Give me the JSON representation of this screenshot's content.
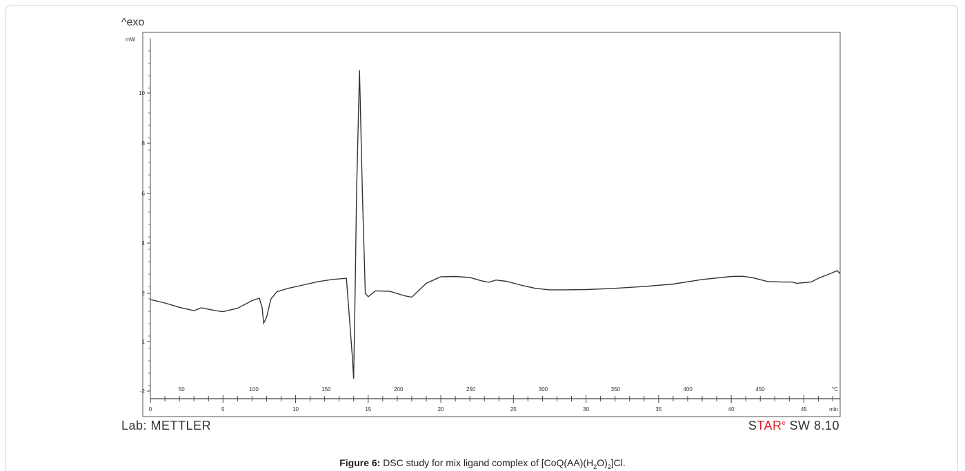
{
  "chart_data": {
    "type": "line",
    "ylabel_top": "^exo",
    "y_unit": "mW",
    "x_top_unit": "°C",
    "x_bottom_unit": "min",
    "y_ticks": [
      "-2",
      "1",
      "2",
      "4",
      "6",
      "8",
      "10"
    ],
    "x_top_ticks": [
      50,
      100,
      150,
      200,
      250,
      300,
      350,
      400,
      450
    ],
    "x_bottom_ticks": [
      0,
      5,
      10,
      15,
      20,
      25,
      30,
      35,
      40,
      45
    ],
    "xlim": [
      0,
      47.5
    ],
    "series": [
      {
        "x": [
          0,
          1,
          2,
          3,
          3.5,
          4,
          4.5,
          5,
          6,
          7,
          7.5,
          7.7,
          7.8,
          8.0,
          8.3,
          8.7,
          9.5,
          10.5,
          11.5,
          12.5,
          13.5,
          13.9,
          14.0,
          14.1,
          14.2,
          14.4,
          14.6,
          14.8,
          15.0,
          15.5,
          16.5,
          17.5,
          18.0,
          19.0,
          20.0,
          21.0,
          22.0,
          22.8,
          23.3,
          23.8,
          24.5,
          25.5,
          26.5,
          27.5,
          28.5,
          30.0,
          32.0,
          34.0,
          36.0,
          38.0,
          40.0,
          40.8,
          41.5,
          42.5,
          43.5,
          44.2,
          44.5,
          45.5,
          46.0,
          46.8,
          47.3,
          47.5
        ],
        "y": [
          1.87,
          1.8,
          1.71,
          1.64,
          1.7,
          1.67,
          1.64,
          1.62,
          1.69,
          1.85,
          1.9,
          1.7,
          1.38,
          1.5,
          1.88,
          2.06,
          2.2,
          2.33,
          2.46,
          2.55,
          2.6,
          0.2,
          -1.25,
          2.0,
          6.0,
          10.9,
          6.0,
          2.0,
          1.93,
          2.1,
          2.08,
          1.95,
          1.92,
          2.4,
          2.66,
          2.67,
          2.63,
          2.5,
          2.44,
          2.53,
          2.48,
          2.33,
          2.2,
          2.14,
          2.14,
          2.15,
          2.2,
          2.27,
          2.37,
          2.55,
          2.67,
          2.68,
          2.62,
          2.47,
          2.45,
          2.45,
          2.4,
          2.45,
          2.6,
          2.78,
          2.9,
          2.78
        ]
      }
    ]
  },
  "footer": {
    "lab": "Lab: METTLER",
    "star_s": "S",
    "star_tar": "TAR",
    "star_sup": "e",
    "star_version": " SW 8.10"
  },
  "caption": {
    "label": "Figure 6:",
    "text_1": " DSC study for mix ligand complex of [CoQ(AA)(H",
    "sub_1": "2",
    "text_2": "O)",
    "sub_2": "2",
    "text_3": "]Cl."
  }
}
